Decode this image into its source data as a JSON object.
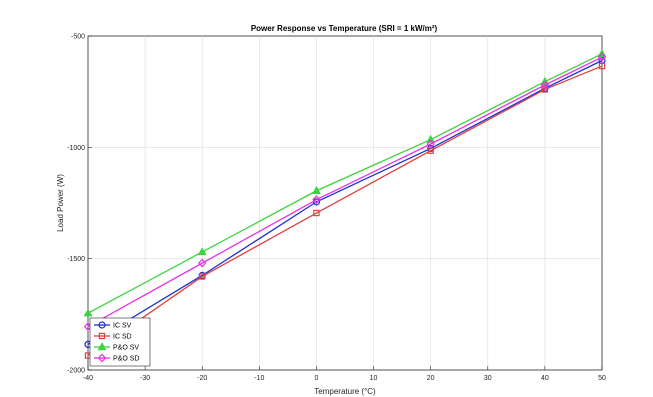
{
  "chart_data": {
    "type": "line",
    "title": "Power Response vs Temperature (SRI = 1 kW/m²)",
    "xlabel": "Temperature (°C)",
    "ylabel": "Load Power (W)",
    "xlim": [
      -40,
      50
    ],
    "ylim": [
      -2000,
      -500
    ],
    "xticks": [
      -40,
      -30,
      -20,
      -10,
      0,
      10,
      20,
      30,
      40,
      50
    ],
    "yticks": [
      -2000,
      -1500,
      -1000,
      -500
    ],
    "grid": true,
    "legend_position": "bottom-left",
    "x": [
      -40,
      -20,
      0,
      20,
      40,
      50
    ],
    "series": [
      {
        "name": "IC SV",
        "color": "#1f2fd0",
        "marker": "circle",
        "values": [
          -1885,
          -1575,
          -1245,
          -1005,
          -735,
          -610
        ]
      },
      {
        "name": "IC SD",
        "color": "#e0413c",
        "marker": "square",
        "values": [
          -1935,
          -1580,
          -1295,
          -1015,
          -740,
          -635
        ]
      },
      {
        "name": "P&O SV",
        "color": "#3ed23e",
        "marker": "triangle",
        "values": [
          -1745,
          -1470,
          -1195,
          -965,
          -705,
          -580
        ]
      },
      {
        "name": "P&O SD",
        "color": "#e633e6",
        "marker": "diamond",
        "values": [
          -1805,
          -1520,
          -1235,
          -985,
          -720,
          -595
        ]
      }
    ]
  }
}
